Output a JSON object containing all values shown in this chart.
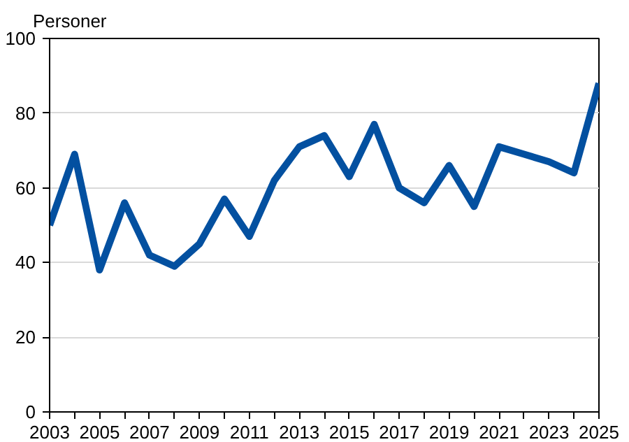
{
  "chart_data": {
    "type": "line",
    "ylabel": "Personer",
    "x": [
      2003,
      2004,
      2005,
      2006,
      2007,
      2008,
      2009,
      2010,
      2011,
      2012,
      2013,
      2014,
      2015,
      2016,
      2017,
      2018,
      2019,
      2020,
      2021,
      2022,
      2023,
      2024,
      2025
    ],
    "series": [
      {
        "color": "#0350a0",
        "values": [
          50,
          69,
          38,
          56,
          42,
          39,
          45,
          57,
          47,
          62,
          71,
          74,
          63,
          77,
          60,
          56,
          66,
          55,
          71,
          69,
          67,
          64,
          88
        ]
      }
    ],
    "xlim": [
      2003,
      2025
    ],
    "xticks": [
      2003,
      {
        "value": 2004,
        "label": null
      },
      2005,
      {
        "value": 2006,
        "label": null
      },
      2007,
      {
        "value": 2008,
        "label": null
      },
      2009,
      {
        "value": 2010,
        "label": null
      },
      2011,
      {
        "value": 2012,
        "label": null
      },
      2013,
      {
        "value": 2014,
        "label": null
      },
      2015,
      {
        "value": 2016,
        "label": null
      },
      2017,
      {
        "value": 2018,
        "label": null
      },
      2019,
      {
        "value": 2020,
        "label": null
      },
      2021,
      {
        "value": 2022,
        "label": null
      },
      2023,
      {
        "value": 2024,
        "label": null
      },
      2025
    ],
    "ylim": [
      0,
      100
    ],
    "yticks": [
      0,
      20,
      40,
      60,
      80,
      100
    ],
    "grid": "y",
    "marker": "none",
    "line_style": "solid"
  }
}
